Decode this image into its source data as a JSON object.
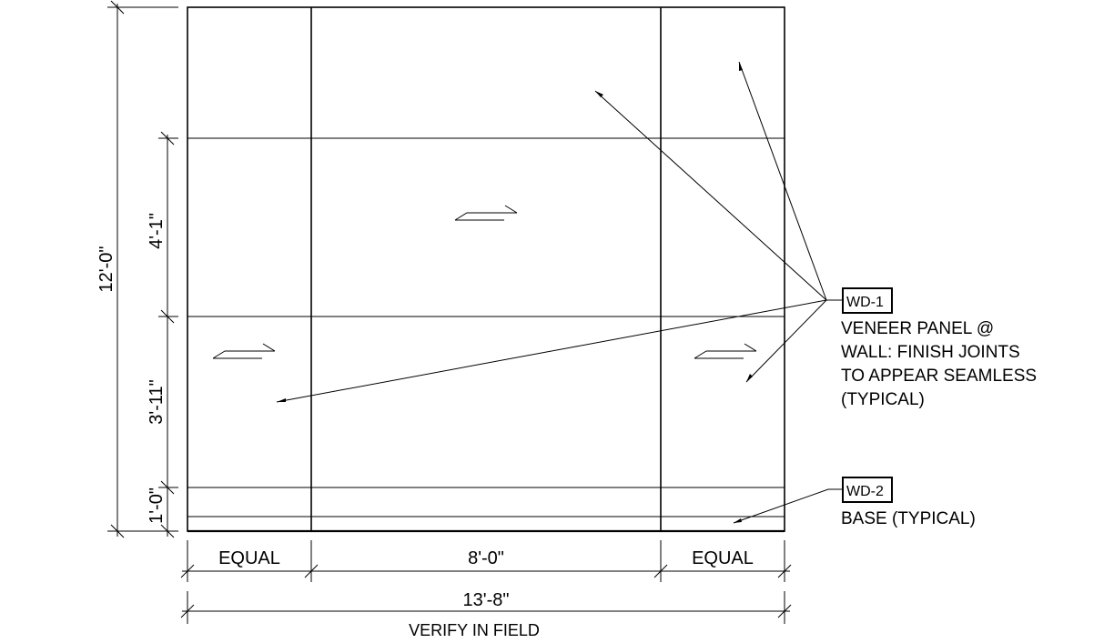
{
  "dimensions": {
    "overall_height": "12'-0\"",
    "upper_panel": "4'-1\"",
    "lower_panel": "3'-11\"",
    "base": "1'-0\"",
    "left_panel": "EQUAL",
    "center_panel": "8'-0\"",
    "right_panel": "EQUAL",
    "overall_width": "13'-8\"",
    "field_note": "VERIFY IN FIELD"
  },
  "tags": {
    "wd1": {
      "code": "WD-1",
      "lines": [
        "VENEER PANEL @",
        "WALL:  FINISH JOINTS",
        "TO APPEAR SEAMLESS",
        "(TYPICAL)"
      ]
    },
    "wd2": {
      "code": "WD-2",
      "lines": [
        "BASE (TYPICAL)"
      ]
    }
  }
}
